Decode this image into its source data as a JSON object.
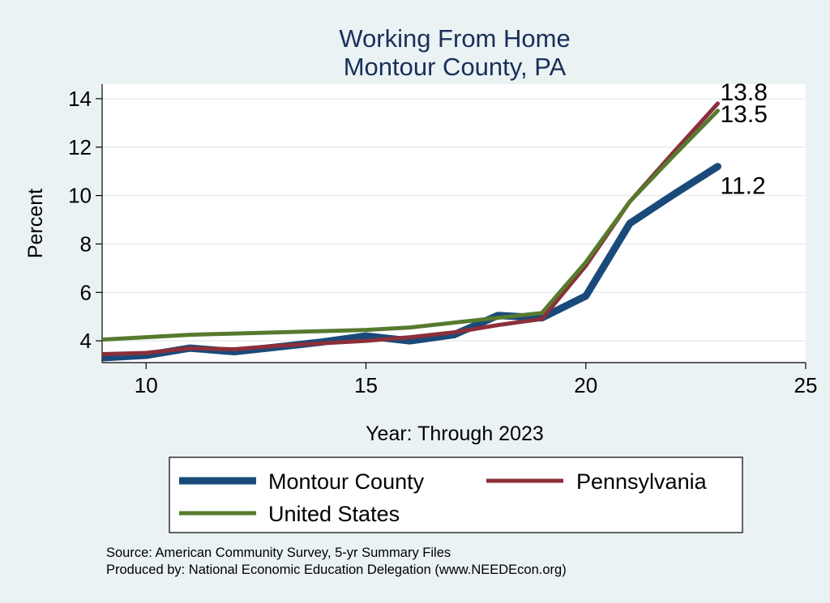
{
  "chart_data": {
    "type": "line",
    "title": [
      "Working From Home",
      "Montour County, PA"
    ],
    "xlabel": "Year: Through 2023",
    "ylabel": "Percent",
    "xlim": [
      9,
      25
    ],
    "ylim": [
      3.1,
      14.6
    ],
    "xticks": [
      10,
      15,
      20,
      25
    ],
    "yticks": [
      4,
      6,
      8,
      10,
      12,
      14
    ],
    "grid": "horizontal",
    "legend_position": "bottom",
    "x": [
      9,
      10,
      11,
      12,
      13,
      14,
      15,
      16,
      17,
      18,
      19,
      20,
      21,
      22,
      23
    ],
    "series": [
      {
        "name": "Montour County",
        "color": "#1a4a7a",
        "width": 9,
        "values": [
          3.3,
          3.4,
          3.7,
          3.55,
          3.75,
          3.95,
          4.2,
          4.0,
          4.25,
          5.05,
          4.95,
          5.85,
          8.85,
          10.05,
          11.2
        ],
        "end_label": "11.2"
      },
      {
        "name": "Pennsylvania",
        "color": "#8b2f3a",
        "width": 5,
        "values": [
          3.45,
          3.5,
          3.7,
          3.65,
          3.8,
          3.9,
          4.0,
          4.15,
          4.35,
          4.65,
          4.9,
          7.1,
          9.75,
          11.8,
          13.8
        ],
        "end_label": "13.8"
      },
      {
        "name": "United States",
        "color": "#577a2e",
        "width": 5,
        "values": [
          4.05,
          4.15,
          4.25,
          4.3,
          4.35,
          4.4,
          4.45,
          4.55,
          4.75,
          4.95,
          5.15,
          7.25,
          9.75,
          11.65,
          13.5
        ],
        "end_label": "13.5"
      }
    ]
  },
  "legend": {
    "items": [
      {
        "label": "Montour County",
        "color": "#1a4a7a"
      },
      {
        "label": "Pennsylvania",
        "color": "#8b2f3a"
      },
      {
        "label": "United States",
        "color": "#577a2e"
      }
    ]
  },
  "footer": {
    "source": "Source: American Community Survey, 5-yr Summary Files",
    "produced": "Produced by: National Economic Education Delegation (www.NEEDEcon.org)"
  }
}
